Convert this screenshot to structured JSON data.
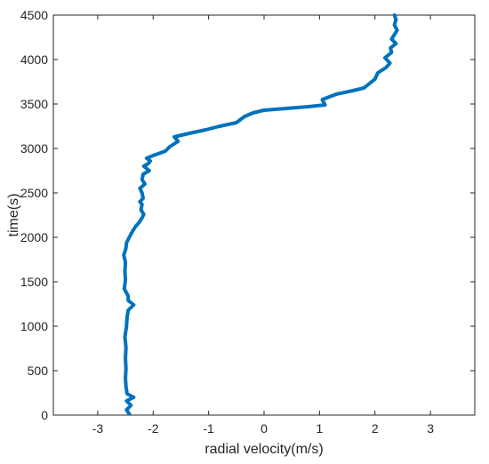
{
  "chart_data": {
    "type": "line",
    "title": "",
    "xlabel": "radial velocity(m/s)",
    "ylabel": "time(s)",
    "xlim": [
      -3.8,
      3.8
    ],
    "ylim": [
      0,
      4500
    ],
    "xticks": [
      -3,
      -2,
      -1,
      0,
      1,
      2,
      3
    ],
    "yticks": [
      0,
      500,
      1000,
      1500,
      2000,
      2500,
      3000,
      3500,
      4000,
      4500
    ],
    "grid": false,
    "colors": {
      "series": "#0072BD",
      "axes": "#262626",
      "background": "#ffffff"
    },
    "series": [
      {
        "name": "",
        "points": [
          [
            -2.42,
            0
          ],
          [
            -2.48,
            60
          ],
          [
            -2.4,
            110
          ],
          [
            -2.48,
            160
          ],
          [
            -2.35,
            200
          ],
          [
            -2.47,
            240
          ],
          [
            -2.49,
            320
          ],
          [
            -2.5,
            420
          ],
          [
            -2.49,
            520
          ],
          [
            -2.5,
            640
          ],
          [
            -2.49,
            760
          ],
          [
            -2.51,
            880
          ],
          [
            -2.48,
            1000
          ],
          [
            -2.47,
            1100
          ],
          [
            -2.45,
            1180
          ],
          [
            -2.35,
            1240
          ],
          [
            -2.45,
            1290
          ],
          [
            -2.45,
            1340
          ],
          [
            -2.52,
            1420
          ],
          [
            -2.5,
            1520
          ],
          [
            -2.51,
            1620
          ],
          [
            -2.5,
            1720
          ],
          [
            -2.53,
            1800
          ],
          [
            -2.49,
            1880
          ],
          [
            -2.48,
            1940
          ],
          [
            -2.43,
            2000
          ],
          [
            -2.38,
            2060
          ],
          [
            -2.32,
            2120
          ],
          [
            -2.25,
            2170
          ],
          [
            -2.2,
            2220
          ],
          [
            -2.17,
            2260
          ],
          [
            -2.22,
            2310
          ],
          [
            -2.2,
            2370
          ],
          [
            -2.24,
            2400
          ],
          [
            -2.18,
            2440
          ],
          [
            -2.2,
            2500
          ],
          [
            -2.24,
            2550
          ],
          [
            -2.15,
            2600
          ],
          [
            -2.2,
            2650
          ],
          [
            -2.18,
            2710
          ],
          [
            -2.07,
            2750
          ],
          [
            -2.17,
            2800
          ],
          [
            -2.09,
            2830
          ],
          [
            -2.05,
            2860
          ],
          [
            -2.12,
            2890
          ],
          [
            -2.0,
            2920
          ],
          [
            -1.78,
            2970
          ],
          [
            -1.7,
            3020
          ],
          [
            -1.55,
            3080
          ],
          [
            -1.62,
            3130
          ],
          [
            -1.35,
            3170
          ],
          [
            -1.05,
            3210
          ],
          [
            -0.8,
            3250
          ],
          [
            -0.5,
            3290
          ],
          [
            -0.35,
            3360
          ],
          [
            -0.2,
            3400
          ],
          [
            0.0,
            3430
          ],
          [
            0.4,
            3450
          ],
          [
            0.8,
            3470
          ],
          [
            1.1,
            3490
          ],
          [
            1.05,
            3550
          ],
          [
            1.3,
            3610
          ],
          [
            1.6,
            3650
          ],
          [
            1.8,
            3680
          ],
          [
            2.0,
            3780
          ],
          [
            2.05,
            3850
          ],
          [
            2.2,
            3910
          ],
          [
            2.27,
            3960
          ],
          [
            2.18,
            4020
          ],
          [
            2.3,
            4080
          ],
          [
            2.28,
            4130
          ],
          [
            2.38,
            4180
          ],
          [
            2.3,
            4230
          ],
          [
            2.36,
            4290
          ],
          [
            2.4,
            4330
          ],
          [
            2.35,
            4390
          ],
          [
            2.38,
            4450
          ],
          [
            2.35,
            4500
          ]
        ]
      }
    ]
  }
}
